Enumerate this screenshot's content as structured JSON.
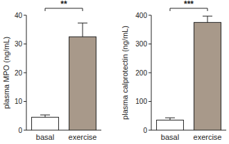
{
  "chart_data": [
    {
      "type": "bar",
      "categories": [
        "basal",
        "exercise"
      ],
      "values": [
        4.5,
        32.5
      ],
      "errors": [
        0.8,
        4.8
      ],
      "colors": [
        "#ffffff",
        "#a8998a"
      ],
      "ylim": [
        0,
        40
      ],
      "yticks": [
        0,
        10,
        20,
        30,
        40
      ],
      "y_label": "plasma MPO (ng/mL)",
      "annotation": "**"
    },
    {
      "type": "bar",
      "categories": [
        "basal",
        "exercise"
      ],
      "values": [
        35,
        375
      ],
      "errors": [
        8,
        22
      ],
      "colors": [
        "#ffffff",
        "#a8998a"
      ],
      "ylim": [
        0,
        400
      ],
      "yticks": [
        0,
        100,
        200,
        300,
        400
      ],
      "y_label": "plasma calprotectin (ng/mL)",
      "annotation": "***"
    }
  ]
}
